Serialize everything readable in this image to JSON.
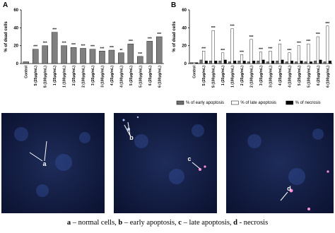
{
  "chart_data": [
    {
      "type": "bar",
      "panel": "A",
      "ylabel": "% of dead cells",
      "color": "#7f7f7f",
      "categories": [
        "Control",
        "S (25μg/mL)",
        "S (100μg/mL)",
        "1 (25μg/mL)",
        "1 (100μg/mL)",
        "2 (25μg/mL)",
        "2 (100μg/mL)",
        "3 (25μg/mL)",
        "3 (100μg/mL)",
        "4 (25μg/mL)",
        "4 (100μg/mL)",
        "5 (25μg/mL)",
        "5 (100μg/mL)",
        "6 (25μg/mL)",
        "6 (100μg/mL)"
      ],
      "values": [
        2,
        16,
        20,
        35,
        20,
        18,
        17,
        16,
        14,
        15,
        12,
        22,
        8,
        25,
        30
      ],
      "significance": [
        null,
        "***",
        "***",
        "***",
        "***",
        "***",
        "***",
        "***",
        "***",
        "***",
        "**",
        "***",
        "***",
        "***",
        "***"
      ],
      "ylim": [
        0,
        60
      ],
      "yticks": [
        0,
        20,
        40,
        60
      ]
    },
    {
      "type": "grouped_bar",
      "panel": "B",
      "ylabel": "% of dead cells",
      "legend": "bottom",
      "categories": [
        "Control",
        "S (25μg/mL)",
        "S (100μg/mL)",
        "1 (25μg/mL)",
        "1 (100μg/mL)",
        "2 (25μg/mL)",
        "2 (100μg/mL)",
        "3 (25μg/mL)",
        "3 (100μg/mL)",
        "4 (25μg/mL)",
        "4 (100μg/mL)",
        "5 (25μg/mL)",
        "5 (100μg/mL)",
        "6 (25μg/mL)",
        "6 (100μg/mL)"
      ],
      "series": [
        {
          "name": "% of early apoptosis",
          "color": "#6e6e6e",
          "values": [
            1,
            4,
            3,
            3,
            2,
            3,
            2,
            3,
            2,
            3,
            2,
            2,
            2,
            3,
            2
          ]
        },
        {
          "name": "% of late apoptosis",
          "color": "#ffffff",
          "values": [
            1,
            14,
            37,
            12,
            39,
            10,
            27,
            13,
            14,
            22,
            12,
            20,
            22,
            30,
            42
          ]
        },
        {
          "name": "% of necrosis",
          "color": "#000000",
          "values": [
            1,
            3,
            3,
            4,
            3,
            3,
            3,
            4,
            3,
            4,
            3,
            3,
            2,
            4,
            3
          ]
        }
      ],
      "significance": [
        null,
        "***",
        "***",
        "***",
        "***",
        "***",
        "***",
        "***",
        "***",
        "*",
        "***",
        "***",
        "***",
        "***",
        "***"
      ],
      "ylim": [
        0,
        60
      ],
      "yticks": [
        0,
        20,
        40,
        60
      ]
    }
  ],
  "figure": {
    "labels": [
      "a",
      "b",
      "c",
      "d"
    ],
    "caption": [
      {
        "key": "a",
        "text": " – normal cells, "
      },
      {
        "key": "b",
        "text": " – early apoptosis, "
      },
      {
        "key": "c",
        "text": " – late apoptosis, "
      },
      {
        "key": "d",
        "text": " - necrosis"
      }
    ]
  }
}
